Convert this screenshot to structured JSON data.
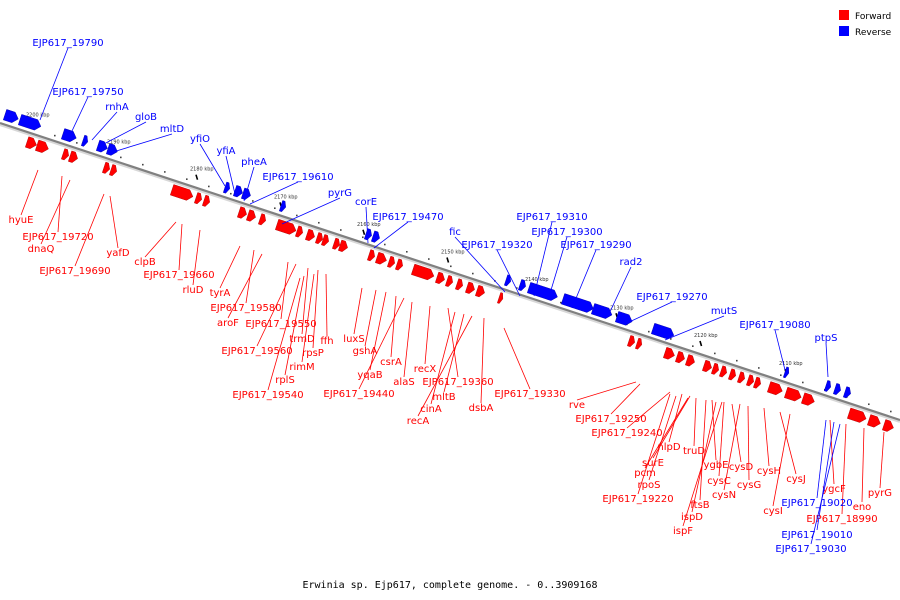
{
  "colors": {
    "forward": "#ff0000",
    "reverse": "#0000ff",
    "backbone": "#8a8a8a"
  },
  "legend": [
    {
      "label": "Forward",
      "color": "#ff0000"
    },
    {
      "label": "Reverse",
      "color": "#0000ff"
    }
  ],
  "caption": "Erwinia sp. Ejp617, complete genome. - 0..3909168",
  "ticks": [
    "2200 kbp",
    "2190 kbp",
    "2180 kbp",
    "2170 kbp",
    "2160 kbp",
    "2150 kbp",
    "2140 kbp",
    "2130 kbp",
    "2120 kbp",
    "2110 kbp"
  ],
  "reverse_labels": [
    "EJP617_19790",
    "EJP617_19750",
    "rnhA",
    "gloB",
    "mltD",
    "yfiO",
    "yfiA",
    "pheA",
    "EJP617_19610",
    "pyrG",
    "corE",
    "EJP617_19470",
    "fic",
    "EJP617_19320",
    "EJP617_19310",
    "EJP617_19300",
    "EJP617_19290",
    "rad2",
    "EJP617_19270",
    "mutS",
    "EJP617_19080",
    "ptpS"
  ],
  "forward_labels_upper": [
    "hyuE",
    "EJP617_19720",
    "dnaQ",
    "EJP617_19690",
    "yafD",
    "clpB",
    "EJP617_19660",
    "rluD",
    "tyrA",
    "EJP617_19580",
    "aroF",
    "EJP617_19550",
    "EJP617_19560",
    "trmD",
    "rpsP",
    "ffh",
    "rimM",
    "rplS",
    "EJP617_19540",
    "luxS",
    "gshA",
    "yqaB",
    "csrA",
    "EJP617_19440",
    "alaS",
    "recX",
    "EJP617_19360",
    "cinA",
    "mltB",
    "recA",
    "dsbA",
    "EJP617_19330"
  ],
  "forward_labels_lower": [
    "rve",
    "EJP617_19250",
    "EJP617_19240",
    "nlpD",
    "surE",
    "truD",
    "pcm",
    "rpoS",
    "ygbE",
    "cysD",
    "cysC",
    "cysH",
    "cysG",
    "cysN",
    "EJP617_19220",
    "ftsB",
    "ispD",
    "ispF",
    "cysJ",
    "cysI",
    "ygcF",
    "EJP617_18990",
    "eno",
    "pyrG"
  ],
  "reverse_labels_lower": [
    "EJP617_19020",
    "EJP617_19010",
    "EJP617_19030"
  ]
}
